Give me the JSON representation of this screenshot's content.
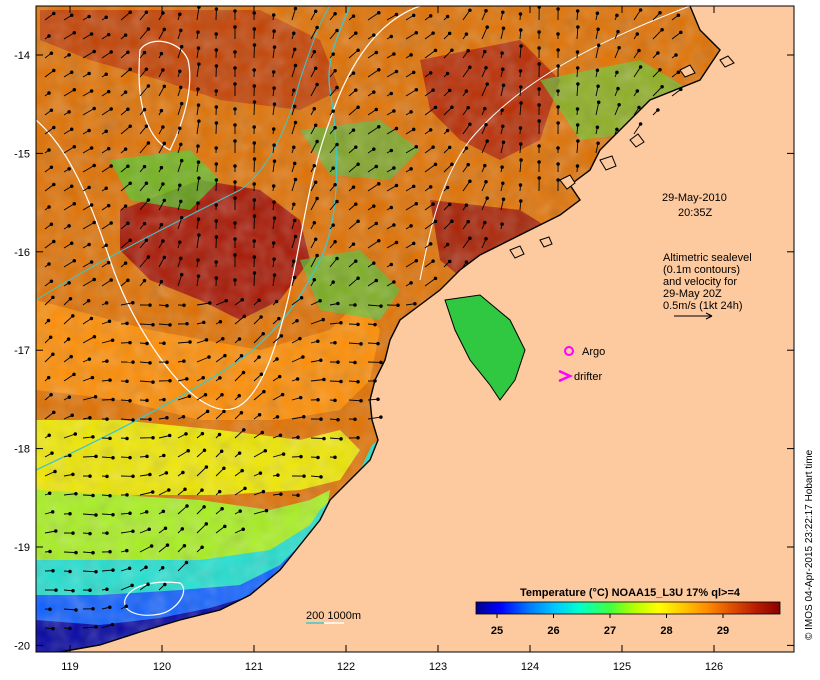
{
  "map": {
    "lon_ticks": [
      "119",
      "120",
      "121",
      "122",
      "123",
      "124",
      "125",
      "126"
    ],
    "lat_ticks": [
      "-14",
      "-15",
      "-16",
      "-17",
      "-18",
      "-19",
      "-20"
    ],
    "date_line1": "29-May-2010",
    "date_line2": "20:35Z",
    "altimetry_text": [
      "Altimetric sealevel",
      "(0.1m contours)",
      "and velocity for",
      "29-May 20Z",
      "0.5m/s (1kt 24h)"
    ],
    "legend_argo": "Argo",
    "legend_drifter": "drifter",
    "depth_legend": "200  1000m",
    "colorbar_title": "Temperature (°C) NOAA15_L3U 17% ql>=4",
    "colorbar_ticks": [
      "25",
      "26",
      "27",
      "28",
      "29"
    ],
    "credit": "© IMOS 04-Apr-2015 23:22:17 Hobart time",
    "colors": {
      "land": "#fdc99e",
      "argo": "#ff00ff",
      "drifter": "#ff00ff",
      "contour_200m": "#3ec8c8",
      "contour_1000m": "#ffffff"
    },
    "colorscale": [
      "#00008b",
      "#0000ff",
      "#0080ff",
      "#00c8ff",
      "#00ffcc",
      "#40ff40",
      "#b4ff00",
      "#ffff00",
      "#ffc800",
      "#ff8c00",
      "#e05000",
      "#b81e00",
      "#8b0000"
    ]
  }
}
